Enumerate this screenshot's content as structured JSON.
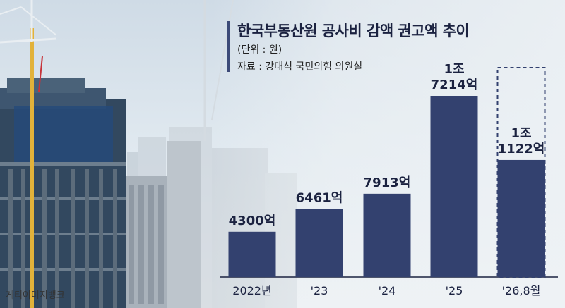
{
  "title": "한국부동산원 공사비 감액 권고액 추이",
  "subtitle": "(단위 : 원)",
  "source": "자료 : 강대식 국민의힘 의원실",
  "photo_credit": "게티이미지뱅크",
  "colors": {
    "bar": "#33416f",
    "projection_outline": "#33416f",
    "text": "#1b2240"
  },
  "chart_data": {
    "type": "bar",
    "categories": [
      "2022년",
      "'23",
      "'24",
      "'25",
      "'26,8월"
    ],
    "values": [
      4300,
      6461,
      7913,
      17214,
      11122
    ],
    "value_labels": [
      [
        "4300억"
      ],
      [
        "6461억"
      ],
      [
        "7913억"
      ],
      [
        "1조",
        "7214억"
      ],
      [
        "1조",
        "1122억"
      ]
    ],
    "unit": "억원",
    "title": "한국부동산원 공사비 감액 권고액 추이",
    "xlabel": "",
    "ylabel": "",
    "ylim": [
      0,
      17214
    ],
    "grid": false,
    "partial_year_index": 4
  }
}
